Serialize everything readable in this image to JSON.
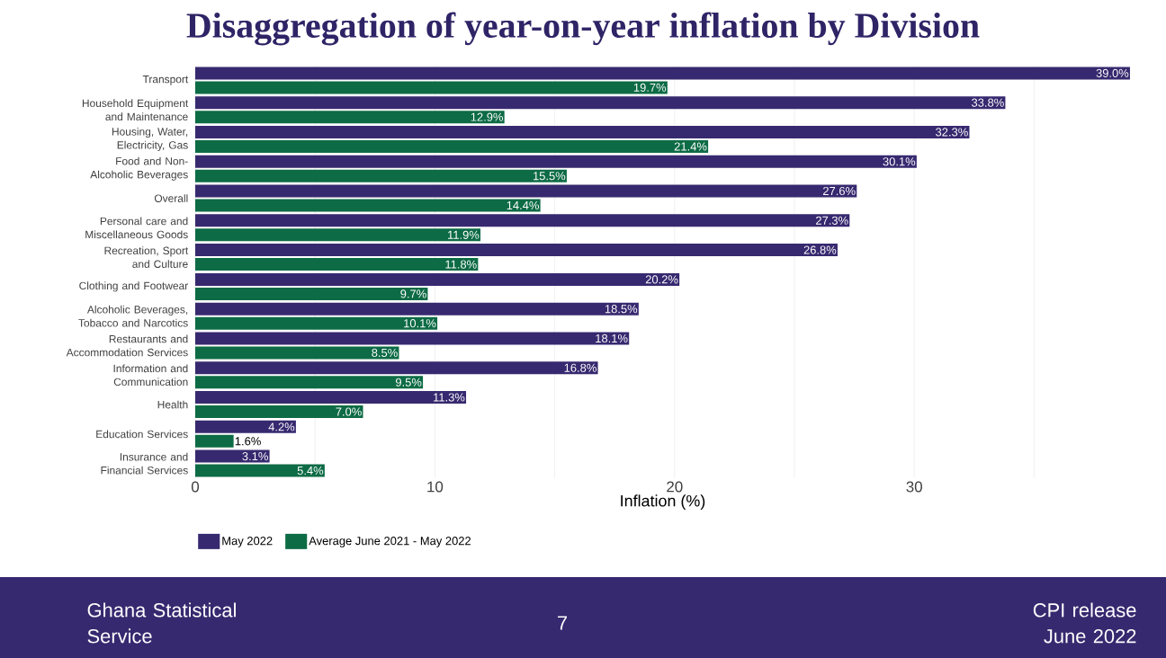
{
  "chart_data": {
    "type": "bar",
    "orientation": "horizontal",
    "title": "Disaggregation of year-on-year inflation by Division",
    "xlabel": "Inflation (%)",
    "categories": [
      "Transport",
      "Household Equipment and Maintenance",
      "Housing, Water, Electricity, Gas",
      "Food and Non-Alcoholic Beverages",
      "Overall",
      "Personal care and Miscellaneous Goods",
      "Recreation, Sport and Culture",
      "Clothing and Footwear",
      "Alcoholic Beverages, Tobacco and Narcotics",
      "Restaurants and Accommodation Services",
      "Information and Communication",
      "Health",
      "Education Services",
      "Insurance and Financial Services"
    ],
    "series": [
      {
        "name": "May 2022",
        "color": "#37296f",
        "values": [
          39.0,
          33.8,
          32.3,
          30.1,
          27.6,
          27.3,
          26.8,
          20.2,
          18.5,
          18.1,
          16.8,
          11.3,
          4.2,
          3.1
        ],
        "value_labels": [
          "39.0%",
          "33.8%",
          "32.3%",
          "30.1%",
          "27.6%",
          "27.3%",
          "26.8%",
          "20.2%",
          "18.5%",
          "18.1%",
          "16.8%",
          "11.3%",
          "4.2%",
          "3.1%"
        ]
      },
      {
        "name": "Average June 2021 - May 2022",
        "color": "#0d6b45",
        "values": [
          19.7,
          12.9,
          21.4,
          15.5,
          14.4,
          11.9,
          11.8,
          9.7,
          10.1,
          8.5,
          9.5,
          7.0,
          1.6,
          5.4
        ],
        "value_labels": [
          "19.7%",
          "12.9%",
          "21.4%",
          "15.5%",
          "14.4%",
          "11.9%",
          "11.8%",
          "9.7%",
          "10.1%",
          "8.5%",
          "9.5%",
          "7.0%",
          "1.6%",
          "5.4%"
        ]
      }
    ],
    "xlim": [
      0,
      39
    ],
    "xticks": [
      0,
      {
        "value": 5,
        "label": null
      },
      10,
      {
        "value": 15,
        "label": null
      },
      20,
      {
        "value": 25,
        "label": null
      },
      30,
      {
        "value": 35,
        "label": null
      }
    ],
    "grid": "x",
    "legend": "bottom",
    "annotations": [
      "Ghana Statistical Service",
      "7",
      "CPI release June 2022"
    ]
  }
}
